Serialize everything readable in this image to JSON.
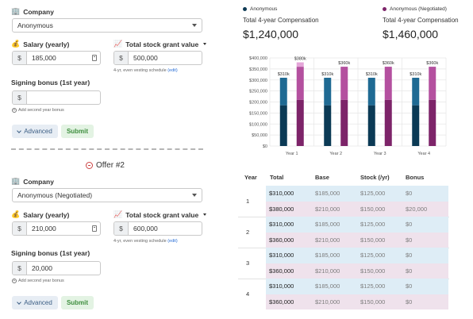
{
  "offer1": {
    "company_label": "Company",
    "company_value": "Anonymous",
    "salary_label": "Salary (yearly)",
    "salary_prefix": "$",
    "salary_value": "185,000",
    "stock_label": "Total stock grant value",
    "stock_prefix": "$",
    "stock_value": "500,000",
    "vesting_hint": "4-yr, even vesting schedule",
    "edit_label": "(edit)",
    "signing_label": "Signing bonus (1st year)",
    "signing_prefix": "$",
    "signing_value": "",
    "add_second_year": "Add second year bonus",
    "advanced_label": "Advanced",
    "submit_label": "Submit"
  },
  "offer2": {
    "title": "Offer #2",
    "company_label": "Company",
    "company_value": "Anonymous (Negotiated)",
    "salary_label": "Salary (yearly)",
    "salary_prefix": "$",
    "salary_value": "210,000",
    "stock_label": "Total stock grant value",
    "stock_prefix": "$",
    "stock_value": "600,000",
    "vesting_hint": "4-yr, even vesting schedule",
    "edit_label": "(edit)",
    "signing_label": "Signing bonus (1st year)",
    "signing_prefix": "$",
    "signing_value": "20,000",
    "add_second_year": "Add second year bonus",
    "advanced_label": "Advanced",
    "submit_label": "Submit"
  },
  "summary": {
    "offer_a": {
      "name": "Anonymous",
      "label": "Total 4-year Compensation",
      "value": "$1,240,000",
      "color": "#0e3a54"
    },
    "offer_b": {
      "name": "Anonymous (Negotiated)",
      "label": "Total 4-year Compensation",
      "value": "$1,460,000",
      "color": "#7d2469"
    }
  },
  "chart_data": {
    "type": "bar",
    "categories": [
      "Year 1",
      "Year 2",
      "Year 3",
      "Year 4"
    ],
    "ylim": [
      0,
      400000
    ],
    "yticks": [
      "$0",
      "$50,000",
      "$100,000",
      "$150,000",
      "$200,000",
      "$250,000",
      "$300,000",
      "$350,000",
      "$400,000"
    ],
    "series": [
      {
        "name": "Anonymous",
        "stack": {
          "base": [
            185000,
            185000,
            185000,
            185000
          ],
          "stock": [
            125000,
            125000,
            125000,
            125000
          ],
          "bonus": [
            0,
            0,
            0,
            0
          ]
        },
        "totals_label": [
          "$310k",
          "$310k",
          "$310k",
          "$310k"
        ]
      },
      {
        "name": "Anonymous (Negotiated)",
        "stack": {
          "base": [
            210000,
            210000,
            210000,
            210000
          ],
          "stock": [
            150000,
            150000,
            150000,
            150000
          ],
          "bonus": [
            20000,
            0,
            0,
            0
          ]
        },
        "totals_label": [
          "$380k",
          "$360k",
          "$360k",
          "$360k"
        ]
      }
    ],
    "colors": {
      "a_base": "#0b3a55",
      "a_stock": "#1f6a93",
      "b_base": "#7d2469",
      "b_stock": "#b4509f",
      "b_bonus": "#e4a5d8"
    }
  },
  "table": {
    "headers": [
      "Year",
      "Total",
      "Base",
      "Stock (/yr)",
      "Bonus"
    ],
    "rows": [
      {
        "year": "1",
        "a": [
          "$310,000",
          "$185,000",
          "$125,000",
          "$0"
        ],
        "b": [
          "$380,000",
          "$210,000",
          "$150,000",
          "$20,000"
        ]
      },
      {
        "year": "2",
        "a": [
          "$310,000",
          "$185,000",
          "$125,000",
          "$0"
        ],
        "b": [
          "$360,000",
          "$210,000",
          "$150,000",
          "$0"
        ]
      },
      {
        "year": "3",
        "a": [
          "$310,000",
          "$185,000",
          "$125,000",
          "$0"
        ],
        "b": [
          "$360,000",
          "$210,000",
          "$150,000",
          "$0"
        ]
      },
      {
        "year": "4",
        "a": [
          "$310,000",
          "$185,000",
          "$125,000",
          "$0"
        ],
        "b": [
          "$360,000",
          "$210,000",
          "$150,000",
          "$0"
        ]
      }
    ]
  },
  "icons": {
    "company": "office-building-icon",
    "salary": "money-bag-icon",
    "stock": "chart-up-icon"
  }
}
